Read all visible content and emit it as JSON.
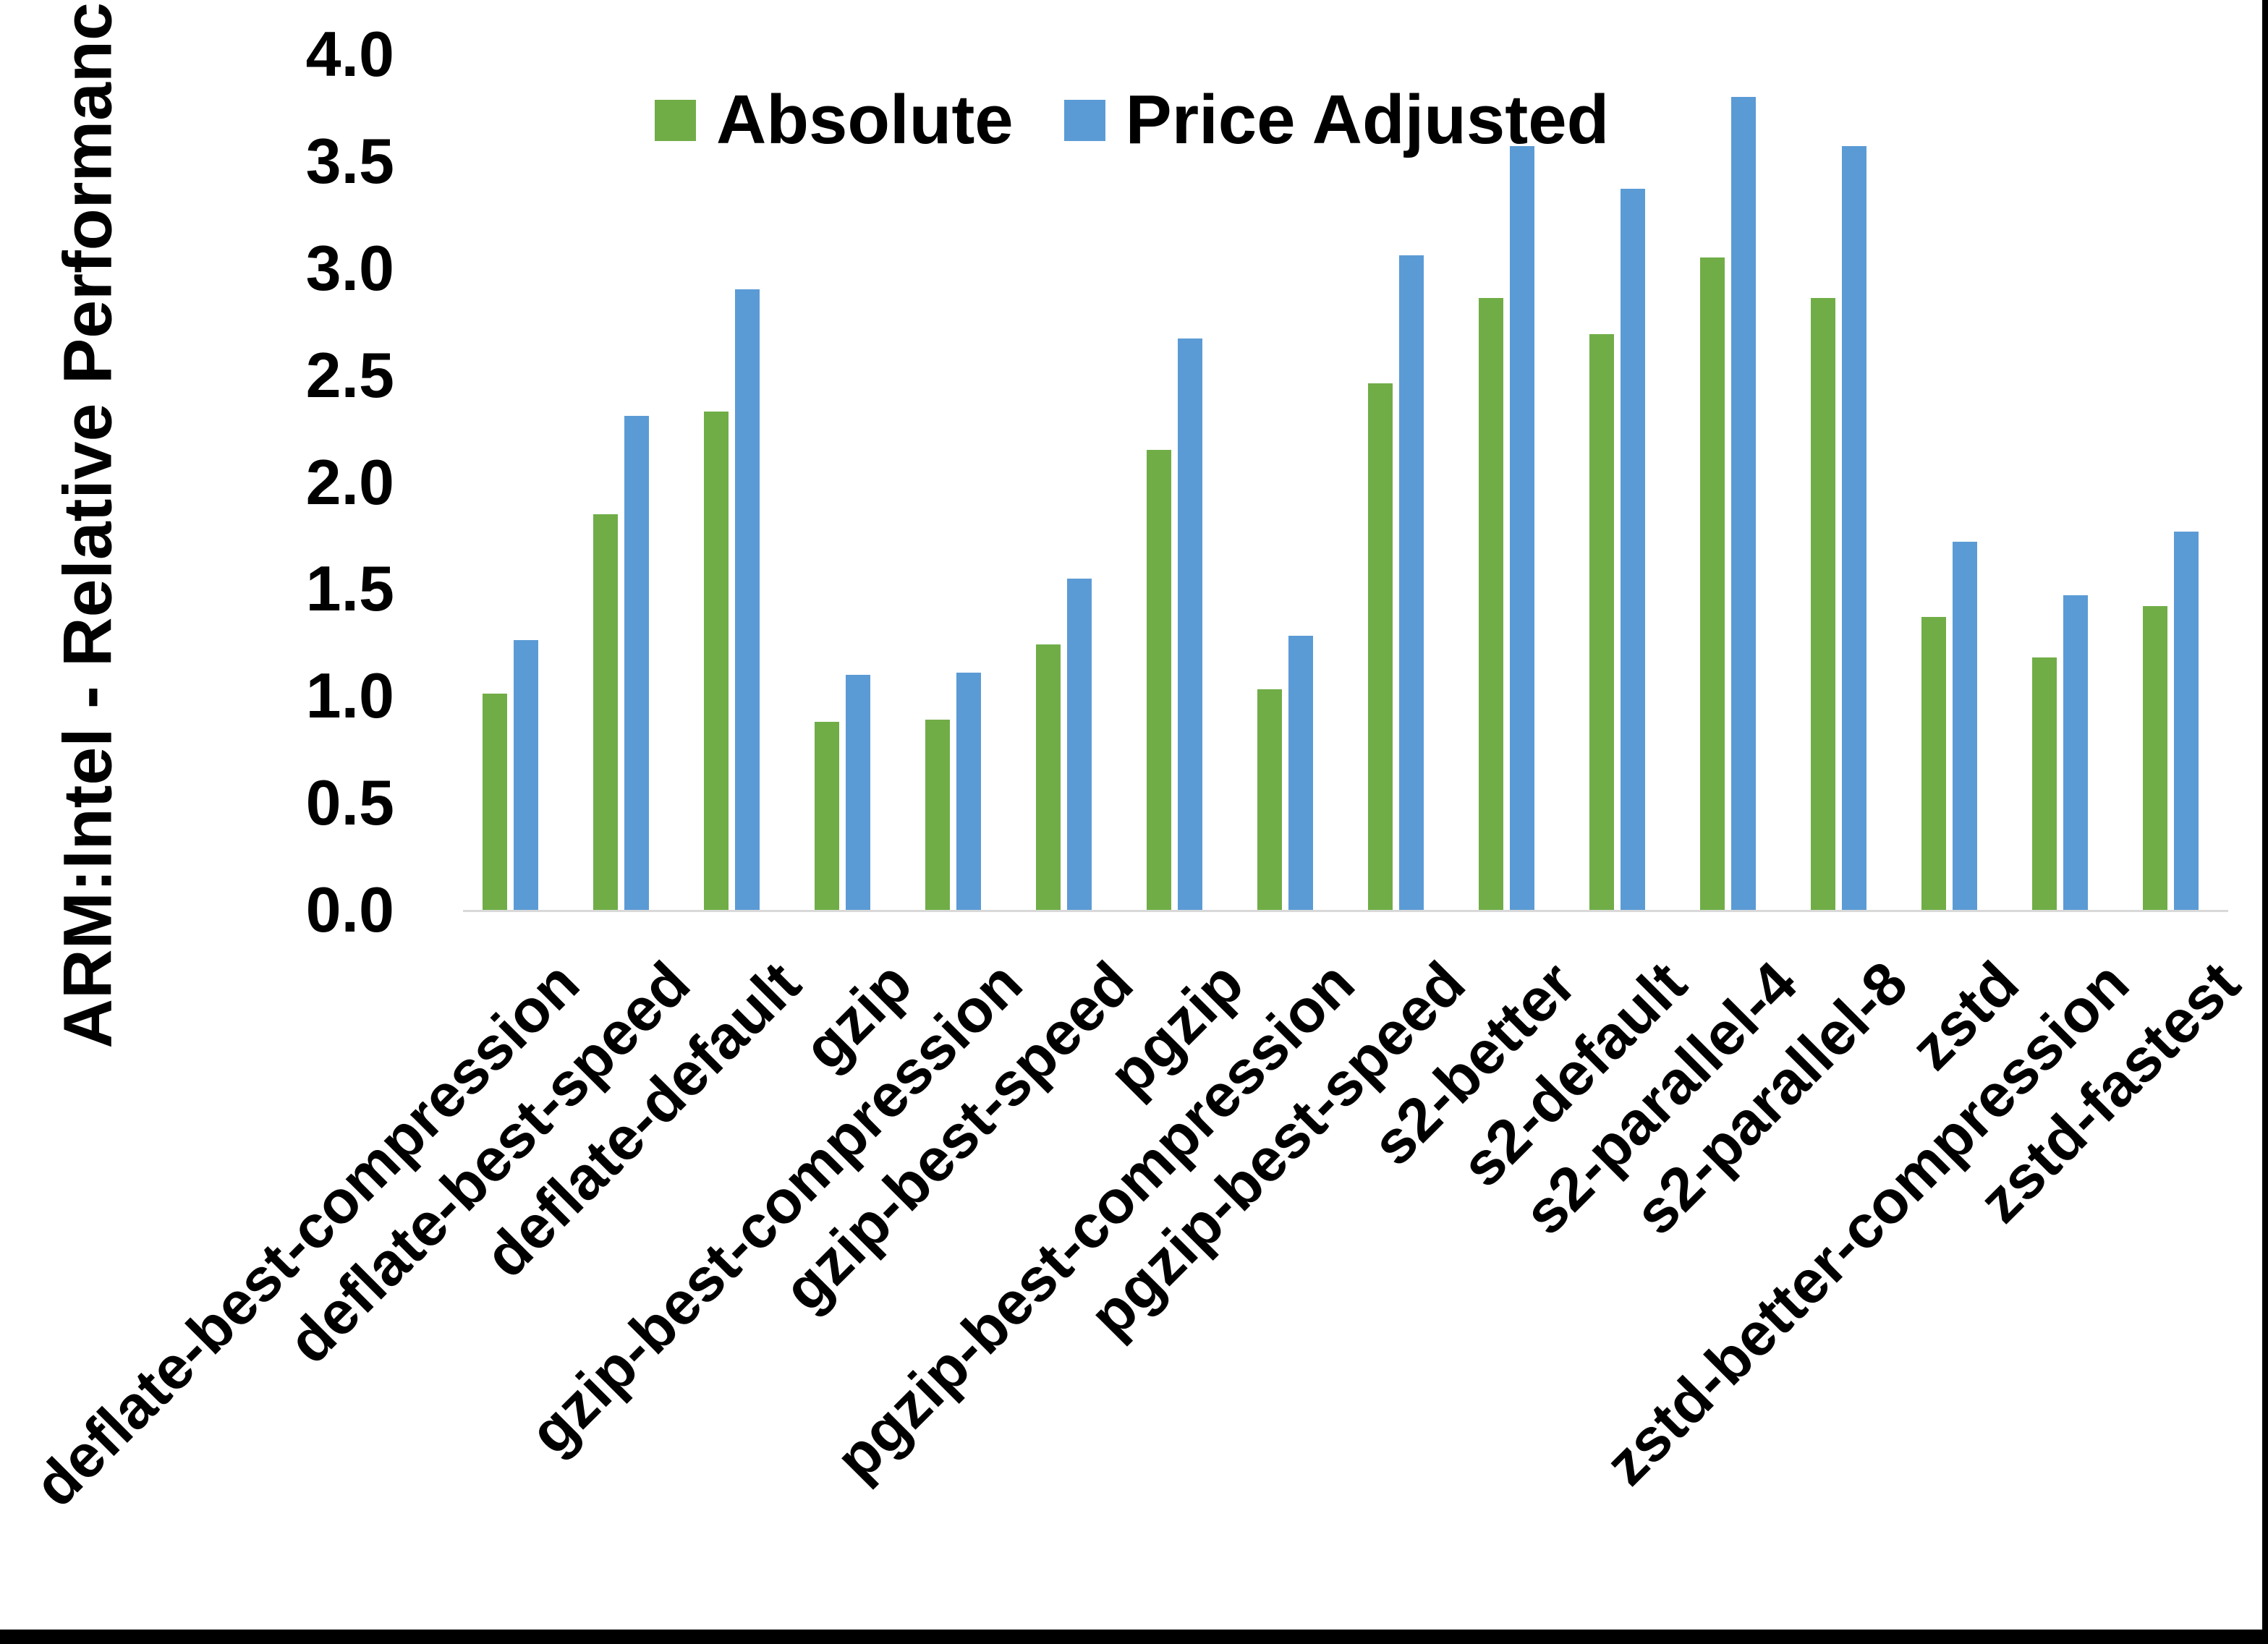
{
  "chart_data": {
    "type": "bar",
    "title": "",
    "ylabel": "ARM:Intel - Relative Performance",
    "xlabel": "",
    "ylim": [
      0.0,
      4.0
    ],
    "ytick_labels": [
      "4.0",
      "3.5",
      "3.0",
      "2.5",
      "2.0",
      "1.5",
      "1.0",
      "0.5",
      "0.0"
    ],
    "grid": false,
    "legend_position": "top-center",
    "categories": [
      "deflate-best-compression",
      "deflate-best-speed",
      "deflate-default",
      "gzip",
      "gzip-best-compression",
      "gzip-best-speed",
      "pgzip",
      "pgzip-best-compression",
      "pgzip-best-speed",
      "s2-better",
      "s2-default",
      "s2-parallel-4",
      "s2-parallel-8",
      "zstd",
      "zstd-better-compression",
      "zstd-fastest"
    ],
    "series": [
      {
        "name": "Absolute",
        "color": "#70AD47",
        "values": [
          1.01,
          1.85,
          2.33,
          0.88,
          0.89,
          1.24,
          2.15,
          1.03,
          2.46,
          2.86,
          2.69,
          3.05,
          2.86,
          1.37,
          1.18,
          1.42
        ]
      },
      {
        "name": "Price Adjusted",
        "color": "#5B9BD5",
        "values": [
          1.26,
          2.31,
          2.9,
          1.1,
          1.11,
          1.55,
          2.67,
          1.28,
          3.06,
          3.57,
          3.37,
          3.8,
          3.57,
          1.72,
          1.47,
          1.77
        ]
      }
    ]
  }
}
